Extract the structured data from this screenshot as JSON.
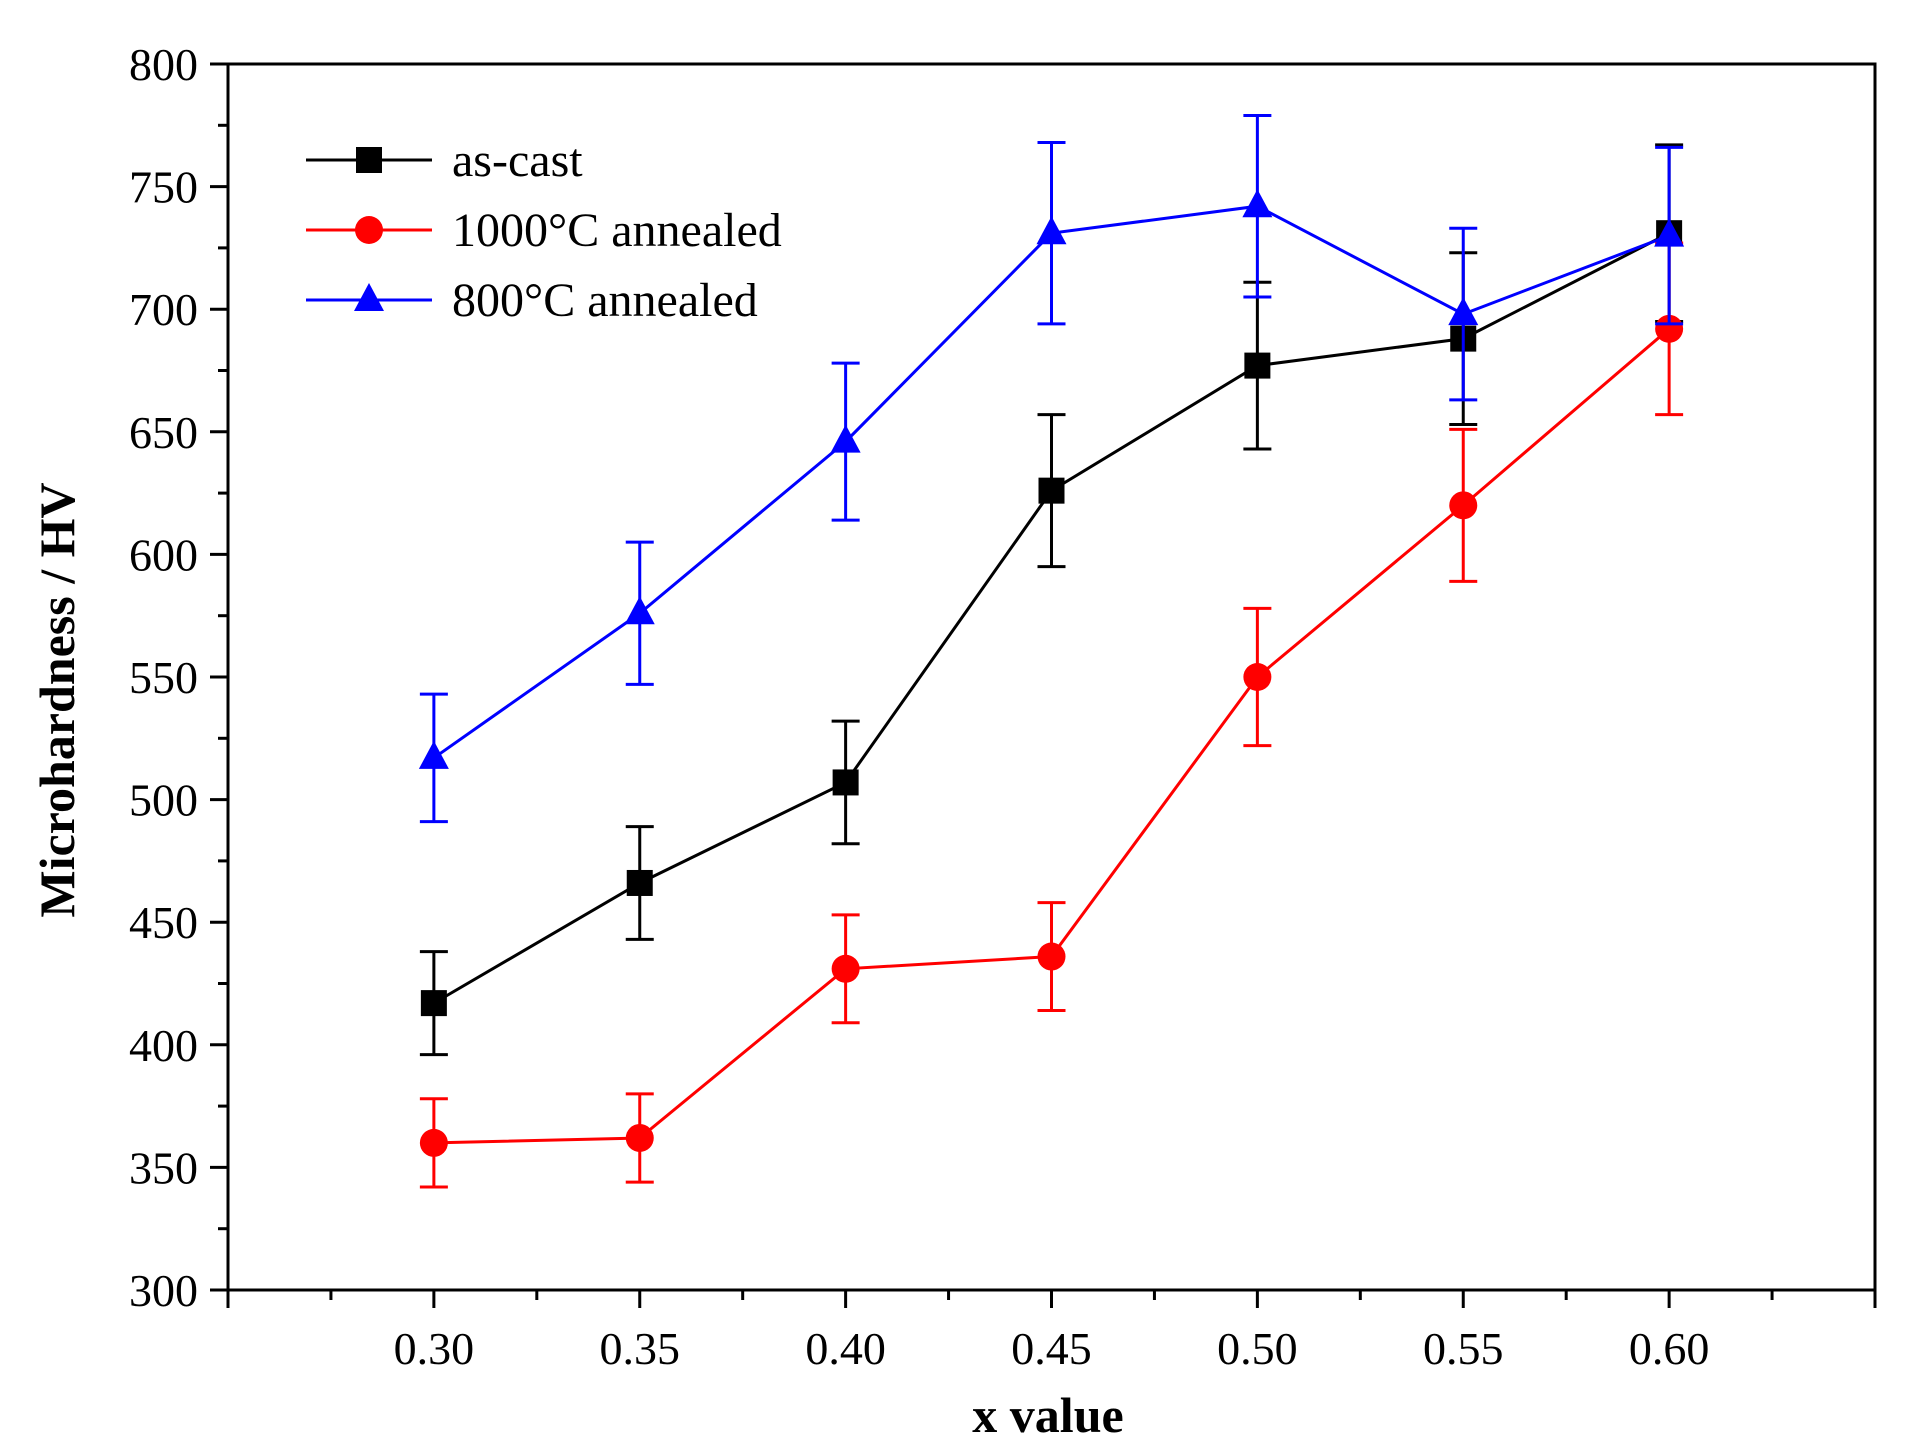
{
  "chart_data": {
    "type": "line",
    "xlabel": "x value",
    "ylabel": "Microhardness / HV",
    "xlim": [
      0.25,
      0.65
    ],
    "ylim": [
      300,
      800
    ],
    "x_ticks": [
      "0.30",
      "0.35",
      "0.40",
      "0.45",
      "0.50",
      "0.55",
      "0.60"
    ],
    "x_tick_values": [
      0.3,
      0.35,
      0.4,
      0.45,
      0.5,
      0.55,
      0.6
    ],
    "y_ticks": [
      "300",
      "350",
      "400",
      "450",
      "500",
      "550",
      "600",
      "650",
      "700",
      "750",
      "800"
    ],
    "y_tick_values": [
      300,
      350,
      400,
      450,
      500,
      550,
      600,
      650,
      700,
      750,
      800
    ],
    "grid": false,
    "legend_position": "top-left",
    "series": [
      {
        "name": "as-cast",
        "color": "#000000",
        "marker": "square",
        "x": [
          0.3,
          0.35,
          0.4,
          0.45,
          0.5,
          0.55,
          0.6
        ],
        "y": [
          417,
          466,
          507,
          626,
          677,
          688,
          731
        ],
        "error": [
          21,
          23,
          25,
          31,
          34,
          35,
          36
        ]
      },
      {
        "name": "1000°C annealed",
        "color": "#ff0000",
        "marker": "circle",
        "x": [
          0.3,
          0.35,
          0.4,
          0.45,
          0.5,
          0.55,
          0.6
        ],
        "y": [
          360,
          362,
          431,
          436,
          550,
          620,
          692
        ],
        "error": [
          18,
          18,
          22,
          22,
          28,
          31,
          35
        ]
      },
      {
        "name": "800°C annealed",
        "color": "#0000ff",
        "marker": "triangle",
        "x": [
          0.3,
          0.35,
          0.4,
          0.45,
          0.5,
          0.55,
          0.6
        ],
        "y": [
          517,
          576,
          646,
          731,
          742,
          698,
          730
        ],
        "error": [
          26,
          29,
          32,
          37,
          37,
          35,
          36
        ]
      }
    ]
  }
}
